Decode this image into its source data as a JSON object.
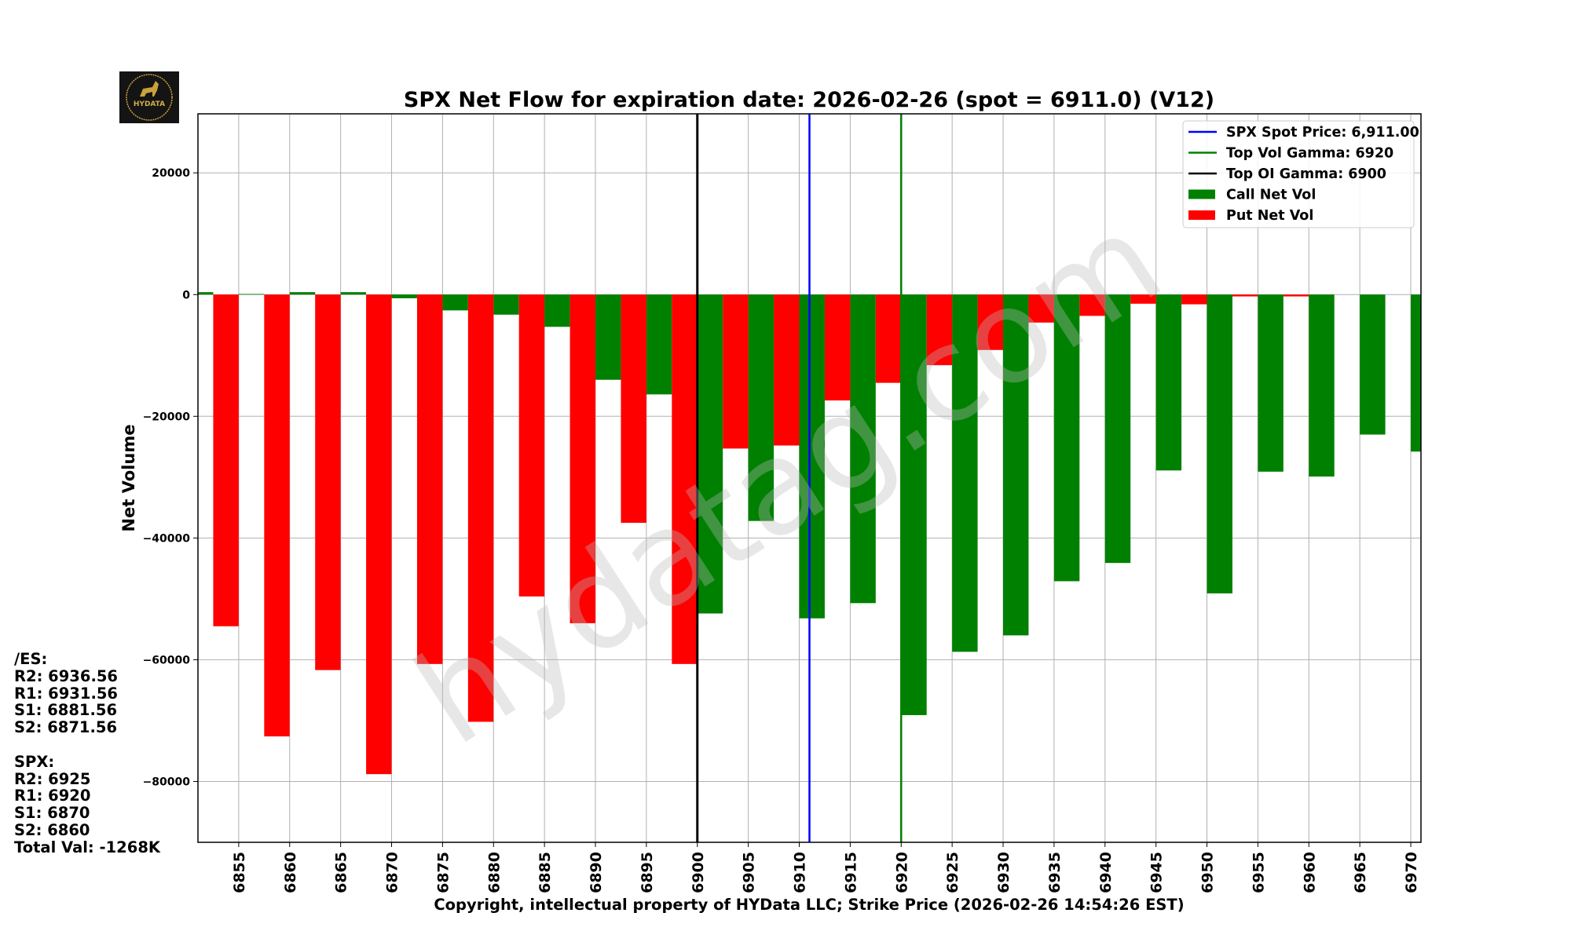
{
  "chart_data": {
    "type": "bar",
    "title": "SPX Net Flow for expiration date: 2026-02-26 (spot = 6911.0) (V12)",
    "xlabel": "Copyright, intellectual property of HYData LLC; Strike Price (2026-02-26 14:54:26 EST)",
    "ylabel": "Net Volume",
    "xlim": [
      6851,
      6971
    ],
    "ylim": [
      -90000,
      29700
    ],
    "grid": true,
    "legend_position": "top-right",
    "x_ticks": [
      6855,
      6860,
      6865,
      6870,
      6875,
      6880,
      6885,
      6890,
      6895,
      6900,
      6905,
      6910,
      6915,
      6920,
      6925,
      6930,
      6935,
      6940,
      6945,
      6950,
      6955,
      6960,
      6965,
      6970
    ],
    "y_ticks": [
      20000,
      0,
      -20000,
      -40000,
      -60000,
      -80000
    ],
    "y_tick_labels": [
      "20000",
      "0",
      "−20000",
      "−40000",
      "−60000",
      "−80000"
    ],
    "strikes": [
      6850,
      6855,
      6860,
      6865,
      6870,
      6875,
      6880,
      6885,
      6890,
      6895,
      6900,
      6905,
      6910,
      6915,
      6920,
      6925,
      6930,
      6935,
      6940,
      6945,
      6950,
      6955,
      6960,
      6965,
      6970
    ],
    "series": [
      {
        "name": "Call Net Vol",
        "color": "#008000",
        "values": [
          400,
          100,
          400,
          400,
          -600,
          -2600,
          -3300,
          -5300,
          -14000,
          -16400,
          -52400,
          -37200,
          -53200,
          -50700,
          -69100,
          -58700,
          -56000,
          -47100,
          -44100,
          -28900,
          -49100,
          -29100,
          -29900,
          -23000,
          -25800
        ]
      },
      {
        "name": "Put Net Vol",
        "color": "#ff0000",
        "values": [
          null,
          -54500,
          -72600,
          -61700,
          -78800,
          -60700,
          -70200,
          -49600,
          -54000,
          -37500,
          -60700,
          -25300,
          -24800,
          -17400,
          -14500,
          -11600,
          -9100,
          -4600,
          -3500,
          -1500,
          -1600,
          -300,
          -300,
          0,
          0
        ]
      }
    ],
    "vlines": [
      {
        "name": "SPX Spot Price: 6,911.00",
        "x": 6911.0,
        "color": "#0000ff"
      },
      {
        "name": "Top Vol Gamma: 6920",
        "x": 6920,
        "color": "#008000"
      },
      {
        "name": "Top OI Gamma: 6900",
        "x": 6900,
        "color": "#000000"
      }
    ]
  },
  "side_panel": {
    "es_header": "/ES:",
    "es_r2": "R2: 6936.56",
    "es_r1": "R1: 6931.56",
    "es_s1": "S1: 6881.56",
    "es_s2": "S2: 6871.56",
    "spx_header": "SPX:",
    "spx_r2": "R2: 6925",
    "spx_r1": "R1: 6920",
    "spx_s1": "S1: 6870",
    "spx_s2": "S2: 6860",
    "total_val": "Total Val: -1268K"
  },
  "logo": {
    "text": "HYDATA"
  },
  "watermark": "hydatag.com"
}
